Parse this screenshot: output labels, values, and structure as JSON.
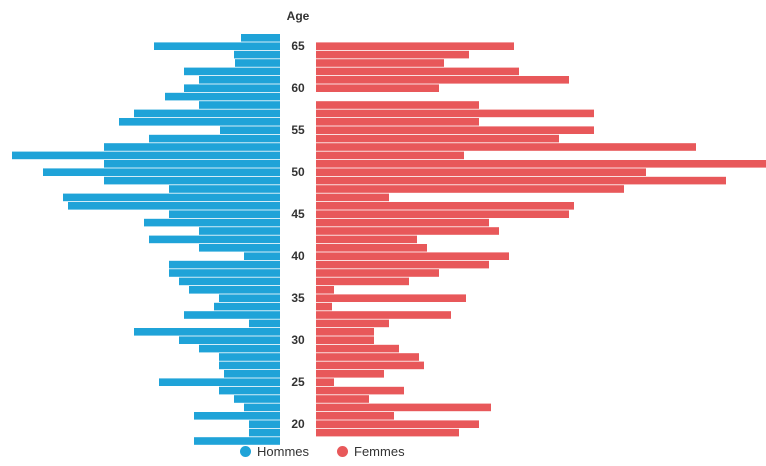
{
  "chart_data": {
    "type": "bar",
    "title": "",
    "ylabel": "Age",
    "y_ticks": [
      65,
      60,
      55,
      50,
      45,
      40,
      35,
      30,
      25,
      20
    ],
    "ages": [
      66,
      65,
      64,
      63,
      62,
      61,
      60,
      59,
      58,
      57,
      56,
      55,
      54,
      53,
      52,
      51,
      50,
      49,
      48,
      47,
      46,
      45,
      44,
      43,
      42,
      41,
      40,
      39,
      38,
      37,
      36,
      35,
      34,
      33,
      32,
      31,
      30,
      29,
      28,
      27,
      26,
      25,
      24,
      23,
      22,
      21,
      20,
      19,
      18
    ],
    "series": [
      {
        "name": "Hommes",
        "color": "#1fa3d8",
        "values": [
          39,
          126,
          46,
          45,
          96,
          81,
          96,
          115,
          81,
          146,
          161,
          60,
          131,
          176,
          268,
          176,
          237,
          176,
          111,
          217,
          212,
          111,
          136,
          81,
          131,
          81,
          36,
          111,
          111,
          101,
          91,
          61,
          66,
          96,
          31,
          146,
          101,
          81,
          61,
          61,
          56,
          121,
          61,
          46,
          36,
          86,
          31,
          31,
          86
        ]
      },
      {
        "name": "Femmes",
        "color": "#e8585a",
        "values": [
          0,
          198,
          153,
          128,
          203,
          253,
          123,
          0,
          163,
          278,
          163,
          278,
          243,
          380,
          148,
          450,
          330,
          410,
          308,
          73,
          258,
          253,
          173,
          183,
          101,
          111,
          193,
          173,
          123,
          93,
          18,
          150,
          16,
          135,
          73,
          58,
          58,
          83,
          103,
          108,
          68,
          18,
          88,
          53,
          175,
          78,
          163,
          143,
          0
        ]
      }
    ],
    "legend": {
      "placement": "bottom-center",
      "entries": [
        "Hommes",
        "Femmes"
      ]
    },
    "grid": false
  }
}
